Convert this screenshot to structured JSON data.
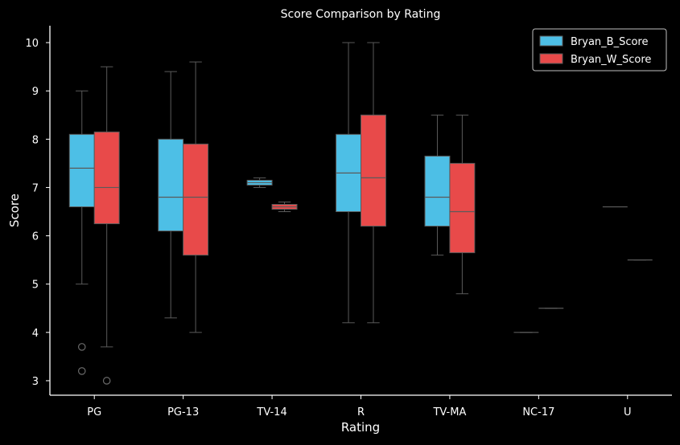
{
  "chart_data": {
    "type": "box",
    "title": "Score Comparison by Rating",
    "xlabel": "Rating",
    "ylabel": "Score",
    "ylim": [
      2.7,
      10.35
    ],
    "yticks": [
      3,
      4,
      5,
      6,
      7,
      8,
      9,
      10
    ],
    "categories": [
      "PG",
      "PG-13",
      "TV-14",
      "R",
      "TV-MA",
      "NC-17",
      "U"
    ],
    "legend_position": "top-right",
    "series": [
      {
        "name": "Bryan_B_Score",
        "color": "#4dbfe6",
        "boxes": [
          {
            "whisker_low": 5.0,
            "q1": 6.6,
            "median": 7.4,
            "q3": 8.1,
            "whisker_high": 9.0,
            "outliers": [
              3.7,
              3.2
            ]
          },
          {
            "whisker_low": 4.3,
            "q1": 6.1,
            "median": 6.8,
            "q3": 8.0,
            "whisker_high": 9.4,
            "outliers": []
          },
          {
            "whisker_low": 7.0,
            "q1": 7.05,
            "median": 7.1,
            "q3": 7.15,
            "whisker_high": 7.2,
            "outliers": []
          },
          {
            "whisker_low": 4.2,
            "q1": 6.5,
            "median": 7.3,
            "q3": 8.1,
            "whisker_high": 10.0,
            "outliers": []
          },
          {
            "whisker_low": 5.6,
            "q1": 6.2,
            "median": 6.8,
            "q3": 7.65,
            "whisker_high": 8.5,
            "outliers": []
          },
          {
            "whisker_low": 4.0,
            "q1": 4.0,
            "median": 4.0,
            "q3": 4.0,
            "whisker_high": 4.0,
            "outliers": []
          },
          {
            "whisker_low": 6.6,
            "q1": 6.6,
            "median": 6.6,
            "q3": 6.6,
            "whisker_high": 6.6,
            "outliers": []
          }
        ]
      },
      {
        "name": "Bryan_W_Score",
        "color": "#e84a4a",
        "boxes": [
          {
            "whisker_low": 3.7,
            "q1": 6.25,
            "median": 7.0,
            "q3": 8.15,
            "whisker_high": 9.5,
            "outliers": [
              3.0
            ]
          },
          {
            "whisker_low": 4.0,
            "q1": 5.6,
            "median": 6.8,
            "q3": 7.9,
            "whisker_high": 9.6,
            "outliers": []
          },
          {
            "whisker_low": 6.5,
            "q1": 6.55,
            "median": 6.6,
            "q3": 6.65,
            "whisker_high": 6.7,
            "outliers": []
          },
          {
            "whisker_low": 4.2,
            "q1": 6.2,
            "median": 7.2,
            "q3": 8.5,
            "whisker_high": 10.0,
            "outliers": []
          },
          {
            "whisker_low": 4.8,
            "q1": 5.65,
            "median": 6.5,
            "q3": 7.5,
            "whisker_high": 8.5,
            "outliers": []
          },
          {
            "whisker_low": 4.5,
            "q1": 4.5,
            "median": 4.5,
            "q3": 4.5,
            "whisker_high": 4.5,
            "outliers": []
          },
          {
            "whisker_low": 5.5,
            "q1": 5.5,
            "median": 5.5,
            "q3": 5.5,
            "whisker_high": 5.5,
            "outliers": []
          }
        ]
      }
    ]
  }
}
